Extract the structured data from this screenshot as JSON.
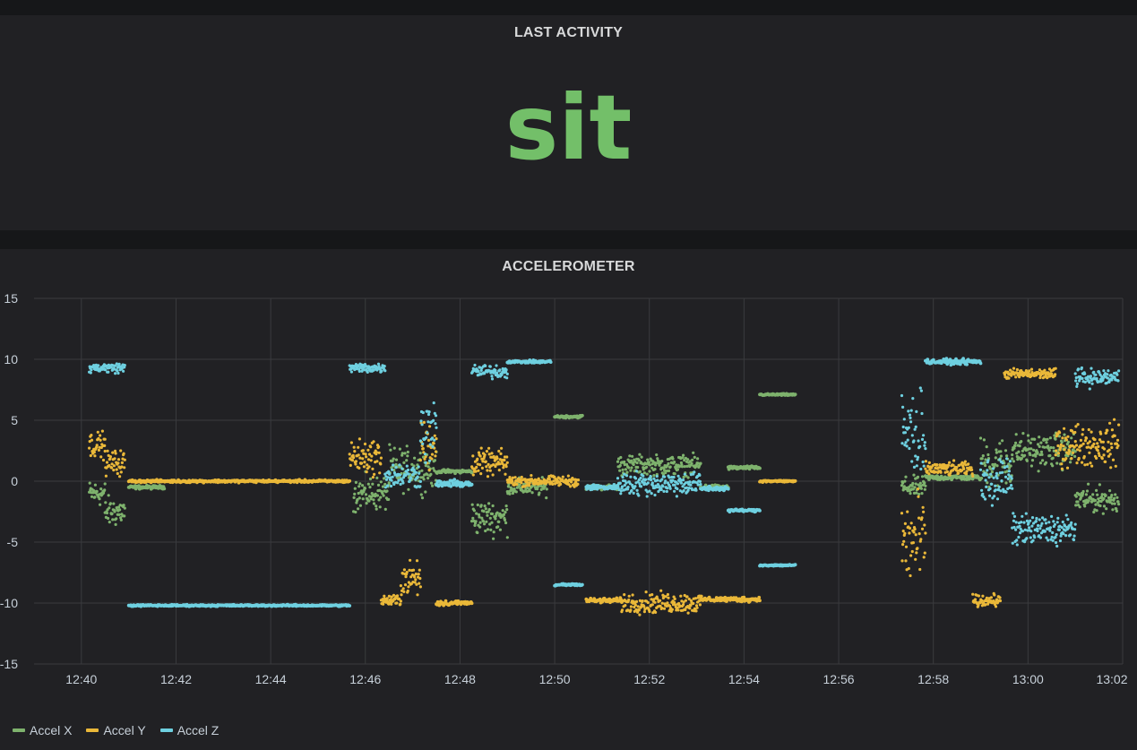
{
  "stat_panel": {
    "title": "LAST ACTIVITY",
    "value": "sit",
    "value_color": "#73bf69"
  },
  "graph_panel": {
    "title": "ACCELEROMETER"
  },
  "colors": {
    "accel_x": "#7eb26d",
    "accel_y": "#eab839",
    "accel_z": "#6ed0e0",
    "panel_bg": "#212124",
    "page_bg": "#161719"
  },
  "legend": [
    {
      "name": "Accel X",
      "color": "#7eb26d"
    },
    {
      "name": "Accel Y",
      "color": "#eab839"
    },
    {
      "name": "Accel Z",
      "color": "#6ed0e0"
    }
  ],
  "chart_data": {
    "type": "scatter",
    "title": "ACCELEROMETER",
    "x_unit": "minutes",
    "xlim": [
      "12:39:00",
      "13:02:00"
    ],
    "ylim": [
      -15,
      15
    ],
    "y_ticks": [
      15,
      10,
      5,
      0,
      -5,
      -10,
      -15
    ],
    "x_ticks": [
      "12:40",
      "12:42",
      "12:44",
      "12:46",
      "12:48",
      "12:50",
      "12:52",
      "12:54",
      "12:56",
      "12:58",
      "13:00",
      "13:02"
    ],
    "grid": true,
    "legend_position": "bottom-left",
    "series": [
      {
        "name": "Accel X",
        "color": "#7eb26d",
        "segments": [
          {
            "start": "12:40:10",
            "end": "12:40:30",
            "y": -1.0,
            "jitter": 1.5
          },
          {
            "start": "12:40:30",
            "end": "12:40:55",
            "y": -2.5,
            "jitter": 1.8
          },
          {
            "start": "12:41:00",
            "end": "12:41:45",
            "y": -0.5,
            "jitter": 0.2
          },
          {
            "start": "12:45:45",
            "end": "12:46:30",
            "y": -1.0,
            "jitter": 2.0
          },
          {
            "start": "12:46:30",
            "end": "12:47:30",
            "y": 1.0,
            "jitter": 2.5
          },
          {
            "start": "12:47:30",
            "end": "12:48:15",
            "y": 0.8,
            "jitter": 0.2
          },
          {
            "start": "12:48:15",
            "end": "12:49:00",
            "y": -3.0,
            "jitter": 2.0
          },
          {
            "start": "12:49:00",
            "end": "12:49:50",
            "y": -0.5,
            "jitter": 1.0
          },
          {
            "start": "12:50:00",
            "end": "12:50:35",
            "y": 5.3,
            "jitter": 0.15
          },
          {
            "start": "12:50:40",
            "end": "12:51:20",
            "y": -0.5,
            "jitter": 0.3
          },
          {
            "start": "12:51:20",
            "end": "12:53:05",
            "y": 1.3,
            "jitter": 1.2
          },
          {
            "start": "12:53:05",
            "end": "12:53:40",
            "y": -0.5,
            "jitter": 0.3
          },
          {
            "start": "12:53:40",
            "end": "12:54:20",
            "y": 1.1,
            "jitter": 0.2
          },
          {
            "start": "12:54:20",
            "end": "12:55:05",
            "y": 7.1,
            "jitter": 0.1
          },
          {
            "start": "12:57:20",
            "end": "12:57:50",
            "y": -0.5,
            "jitter": 1.2
          },
          {
            "start": "12:57:50",
            "end": "12:59:00",
            "y": 0.3,
            "jitter": 0.3
          },
          {
            "start": "12:59:00",
            "end": "12:59:40",
            "y": 1.5,
            "jitter": 3.0
          },
          {
            "start": "12:59:40",
            "end": "13:01:00",
            "y": 2.5,
            "jitter": 2.0
          },
          {
            "start": "13:01:00",
            "end": "13:01:55",
            "y": -1.5,
            "jitter": 1.5
          }
        ]
      },
      {
        "name": "Accel Y",
        "color": "#eab839",
        "segments": [
          {
            "start": "12:40:10",
            "end": "12:40:30",
            "y": 3.0,
            "jitter": 1.5
          },
          {
            "start": "12:40:30",
            "end": "12:40:55",
            "y": 1.5,
            "jitter": 1.5
          },
          {
            "start": "12:41:00",
            "end": "12:45:40",
            "y": 0.0,
            "jitter": 0.15
          },
          {
            "start": "12:45:40",
            "end": "12:46:20",
            "y": 2.0,
            "jitter": 2.0
          },
          {
            "start": "12:46:20",
            "end": "12:46:45",
            "y": -9.8,
            "jitter": 0.7
          },
          {
            "start": "12:46:45",
            "end": "12:47:10",
            "y": -8.0,
            "jitter": 2.0
          },
          {
            "start": "12:47:10",
            "end": "12:47:30",
            "y": 3.0,
            "jitter": 3.0
          },
          {
            "start": "12:47:30",
            "end": "12:48:15",
            "y": -10.0,
            "jitter": 0.3
          },
          {
            "start": "12:48:15",
            "end": "12:49:00",
            "y": 1.5,
            "jitter": 1.5
          },
          {
            "start": "12:49:00",
            "end": "12:50:30",
            "y": 0.0,
            "jitter": 0.6
          },
          {
            "start": "12:50:40",
            "end": "12:51:25",
            "y": -9.8,
            "jitter": 0.3
          },
          {
            "start": "12:51:25",
            "end": "12:53:05",
            "y": -10.0,
            "jitter": 1.2
          },
          {
            "start": "12:53:05",
            "end": "12:54:20",
            "y": -9.7,
            "jitter": 0.3
          },
          {
            "start": "12:54:20",
            "end": "12:55:05",
            "y": 0.0,
            "jitter": 0.1
          },
          {
            "start": "12:57:20",
            "end": "12:57:50",
            "y": -5.0,
            "jitter": 6.0
          },
          {
            "start": "12:57:50",
            "end": "12:58:50",
            "y": 1.0,
            "jitter": 0.8
          },
          {
            "start": "12:58:50",
            "end": "12:59:25",
            "y": -9.8,
            "jitter": 0.7
          },
          {
            "start": "12:59:30",
            "end": "13:00:35",
            "y": 8.8,
            "jitter": 0.6
          },
          {
            "start": "13:00:35",
            "end": "13:01:55",
            "y": 3.0,
            "jitter": 2.5
          }
        ]
      },
      {
        "name": "Accel Z",
        "color": "#6ed0e0",
        "segments": [
          {
            "start": "12:40:10",
            "end": "12:40:55",
            "y": 9.3,
            "jitter": 0.6
          },
          {
            "start": "12:41:00",
            "end": "12:45:40",
            "y": -10.2,
            "jitter": 0.1
          },
          {
            "start": "12:45:40",
            "end": "12:46:25",
            "y": 9.3,
            "jitter": 0.6
          },
          {
            "start": "12:46:25",
            "end": "12:47:10",
            "y": 0.5,
            "jitter": 1.5
          },
          {
            "start": "12:47:10",
            "end": "12:47:30",
            "y": 4.0,
            "jitter": 4.0
          },
          {
            "start": "12:47:30",
            "end": "12:48:15",
            "y": -0.2,
            "jitter": 0.4
          },
          {
            "start": "12:48:15",
            "end": "12:49:00",
            "y": 9.0,
            "jitter": 0.8
          },
          {
            "start": "12:49:00",
            "end": "12:49:55",
            "y": 9.8,
            "jitter": 0.15
          },
          {
            "start": "12:50:00",
            "end": "12:50:35",
            "y": -8.5,
            "jitter": 0.15
          },
          {
            "start": "12:50:40",
            "end": "12:51:20",
            "y": -0.5,
            "jitter": 0.3
          },
          {
            "start": "12:51:20",
            "end": "12:53:05",
            "y": -0.2,
            "jitter": 1.4
          },
          {
            "start": "12:53:05",
            "end": "12:53:40",
            "y": -0.6,
            "jitter": 0.3
          },
          {
            "start": "12:53:40",
            "end": "12:54:20",
            "y": -2.4,
            "jitter": 0.15
          },
          {
            "start": "12:54:20",
            "end": "12:55:05",
            "y": -6.9,
            "jitter": 0.1
          },
          {
            "start": "12:57:20",
            "end": "12:57:50",
            "y": 4.0,
            "jitter": 5.0
          },
          {
            "start": "12:57:50",
            "end": "12:59:00",
            "y": 9.8,
            "jitter": 0.3
          },
          {
            "start": "12:59:00",
            "end": "12:59:40",
            "y": 0.0,
            "jitter": 3.0
          },
          {
            "start": "12:59:40",
            "end": "13:01:00",
            "y": -4.0,
            "jitter": 1.8
          },
          {
            "start": "13:01:00",
            "end": "13:01:55",
            "y": 8.5,
            "jitter": 1.0
          }
        ]
      }
    ]
  }
}
